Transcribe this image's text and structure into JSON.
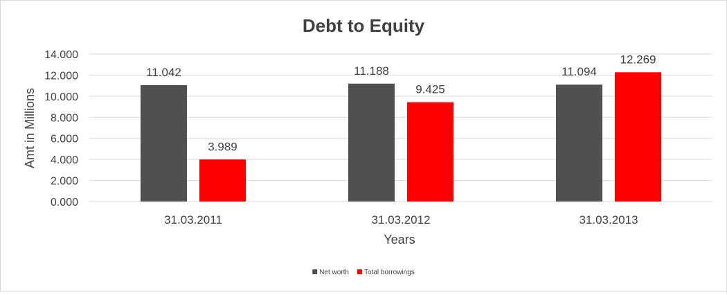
{
  "chart_data": {
    "type": "bar",
    "title": "Debt to Equity",
    "xlabel": "Years",
    "ylabel": "Amt in Millions",
    "categories": [
      "31.03.2011",
      "31.03.2012",
      "31.03.2013"
    ],
    "series": [
      {
        "name": "Net worth",
        "color": "#505050",
        "values": [
          11.042,
          11.188,
          11.094
        ],
        "labels": [
          "11.042",
          "11.188",
          "11.094"
        ]
      },
      {
        "name": "Total borrowings",
        "color": "#ff0000",
        "values": [
          3.989,
          9.425,
          12.269
        ],
        "labels": [
          "3.989",
          "9.425",
          "12.269"
        ]
      }
    ],
    "ylim": [
      0,
      14
    ],
    "yticks": [
      0,
      2,
      4,
      6,
      8,
      10,
      12,
      14
    ],
    "ytick_labels": [
      "0.000",
      "2.000",
      "4.000",
      "6.000",
      "8.000",
      "10.000",
      "12.000",
      "14.000"
    ],
    "grid": true,
    "legend_position": "bottom"
  }
}
